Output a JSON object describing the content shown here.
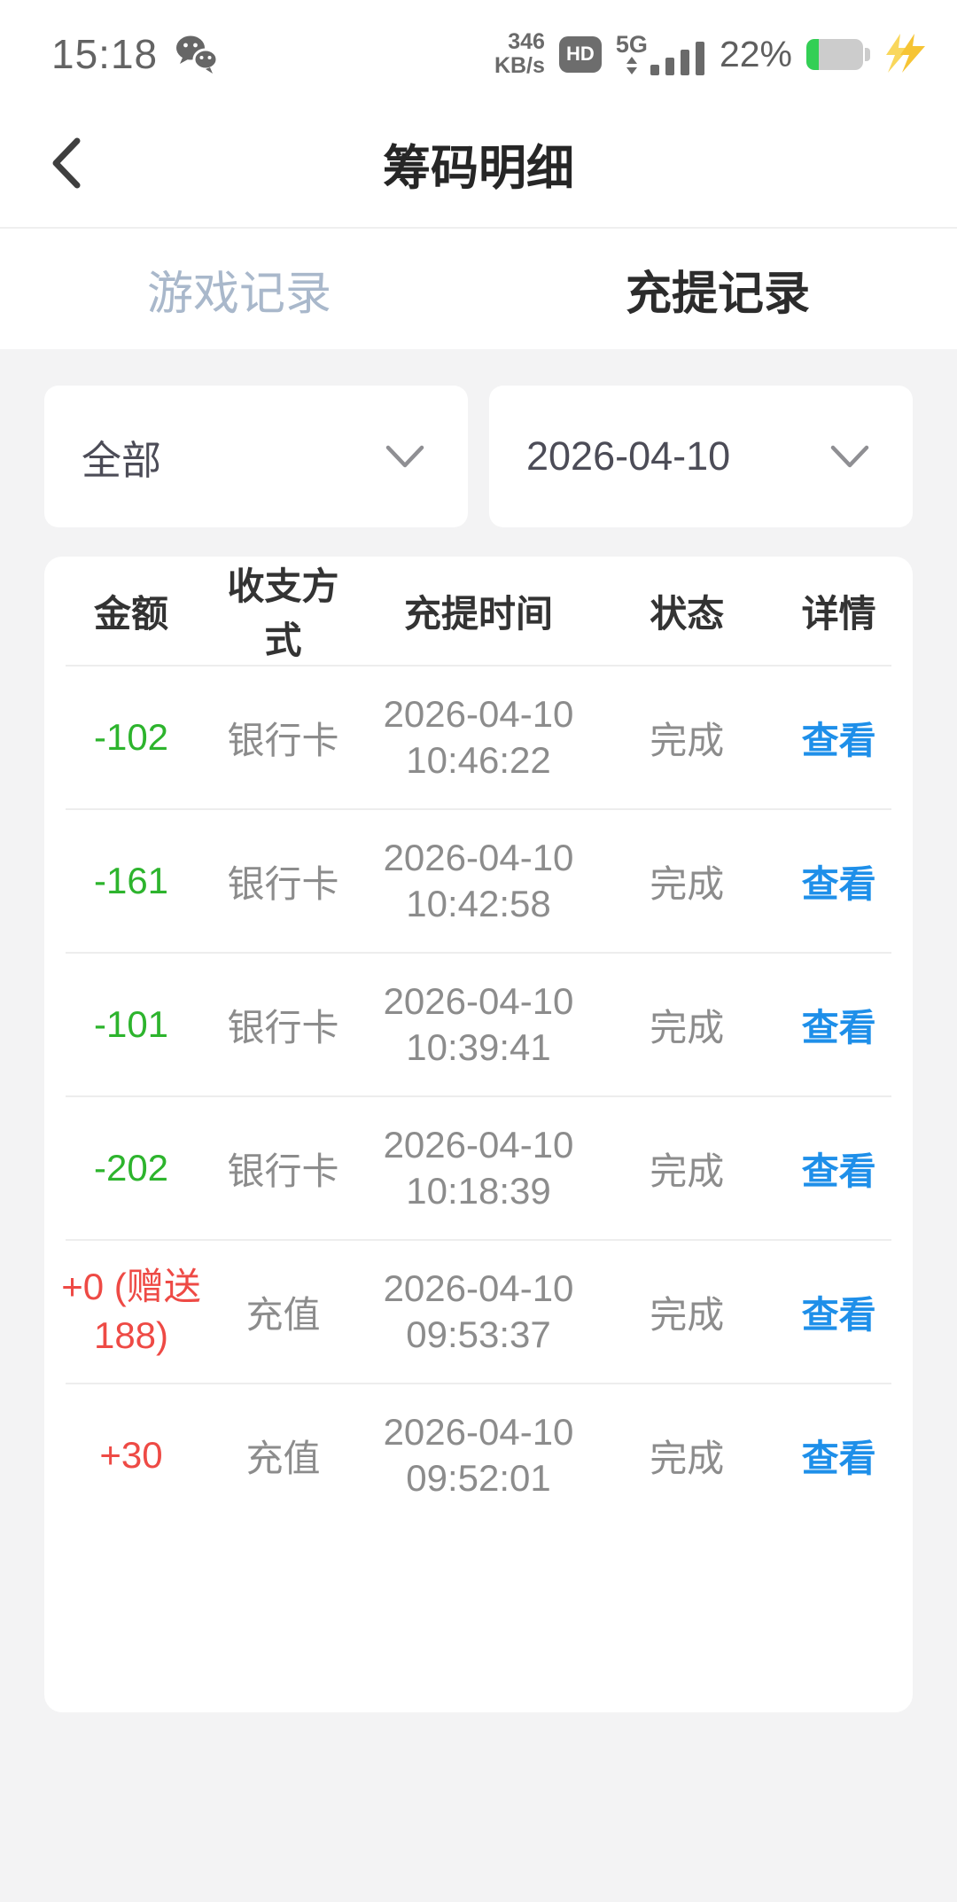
{
  "status_bar": {
    "time": "15:18",
    "wechat_icon": "wechat-bubbles",
    "network_speed_value": "346",
    "network_speed_unit": "KB/s",
    "hd_badge": "HD",
    "network_type": "5G",
    "battery_percent": "22%",
    "battery_fill_percent": 22,
    "charging": true
  },
  "header": {
    "title": "筹码明细",
    "back_icon": "chevron-left"
  },
  "tabs": {
    "game_label": "游戏记录",
    "deposit_label": "充提记录",
    "active_tab": "充提记录"
  },
  "filters": {
    "type_value": "全部",
    "date_value": "2026-04-10"
  },
  "table": {
    "columns": [
      "金额",
      "收支方式",
      "充提时间",
      "状态",
      "详情"
    ],
    "rows": [
      {
        "amount": "-102",
        "amount_color": "#2db42d",
        "method": "银行卡",
        "date": "2026-04-10",
        "time": "10:46:22",
        "status": "完成",
        "detail": "查看"
      },
      {
        "amount": "-161",
        "amount_color": "#2db42d",
        "method": "银行卡",
        "date": "2026-04-10",
        "time": "10:42:58",
        "status": "完成",
        "detail": "查看"
      },
      {
        "amount": "-101",
        "amount_color": "#2db42d",
        "method": "银行卡",
        "date": "2026-04-10",
        "time": "10:39:41",
        "status": "完成",
        "detail": "查看"
      },
      {
        "amount": "-202",
        "amount_color": "#2db42d",
        "method": "银行卡",
        "date": "2026-04-10",
        "time": "10:18:39",
        "status": "完成",
        "detail": "查看"
      },
      {
        "amount": "+0 (赠送 188)",
        "amount_color": "#ee4a45",
        "method": "充值",
        "date": "2026-04-10",
        "time": "09:53:37",
        "status": "完成",
        "detail": "查看"
      },
      {
        "amount": "+30",
        "amount_color": "#ee4a45",
        "method": "充值",
        "date": "2026-04-10",
        "time": "09:52:01",
        "status": "完成",
        "detail": "查看"
      }
    ]
  },
  "colors": {
    "green": "#2db42d",
    "red": "#ee4a45",
    "link_blue": "#1e8fe9",
    "page_bg": "#f3f3f4",
    "inactive_tab": "#a9b8cb",
    "active_tab": "#2c2c2c",
    "gray_text": "#8c8c8c",
    "battery_green": "#33cf55",
    "bolt_yellow": "#f6c434"
  }
}
